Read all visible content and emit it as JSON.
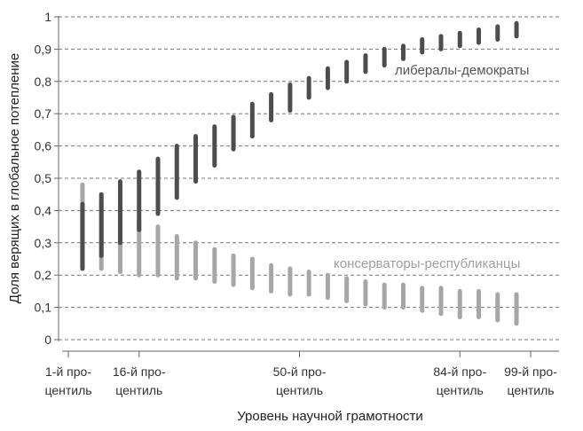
{
  "chart_data": {
    "type": "errorbar",
    "xlabel": "Уровень научной грамотности",
    "ylabel": "Доля верящих в глобальное потепление",
    "ylim": [
      0,
      1
    ],
    "yticks": [
      {
        "value": 0,
        "label": "0"
      },
      {
        "value": 0.1,
        "label": "0,1"
      },
      {
        "value": 0.2,
        "label": "0,2"
      },
      {
        "value": 0.3,
        "label": "0,3"
      },
      {
        "value": 0.4,
        "label": "0,4"
      },
      {
        "value": 0.5,
        "label": "0,5"
      },
      {
        "value": 0.6,
        "label": "0,6"
      },
      {
        "value": 0.7,
        "label": "0,7"
      },
      {
        "value": 0.8,
        "label": "0,8"
      },
      {
        "value": 0.9,
        "label": "0,9"
      },
      {
        "value": 1,
        "label": "1"
      }
    ],
    "xlim": [
      1,
      99
    ],
    "xticks": [
      {
        "value": 1,
        "line1": "1-й про-",
        "line2": "центиль"
      },
      {
        "value": 16,
        "line1": "16-й про-",
        "line2": "центиль"
      },
      {
        "value": 50,
        "line1": "50-й про-",
        "line2": "центиль"
      },
      {
        "value": 84,
        "line1": "84-й про-",
        "line2": "центиль"
      },
      {
        "value": 99,
        "line1": "99-й про-",
        "line2": "центиль"
      }
    ],
    "grid": "horizontal dashed",
    "x": [
      4,
      8,
      12,
      16,
      20,
      24,
      28,
      32,
      36,
      40,
      44,
      48,
      52,
      56,
      60,
      64,
      68,
      72,
      76,
      80,
      84,
      88,
      92,
      96
    ],
    "series": [
      {
        "name": "либералы-демократы",
        "color": "#4d4d4d",
        "low": [
          0.22,
          0.26,
          0.3,
          0.34,
          0.39,
          0.44,
          0.49,
          0.54,
          0.59,
          0.63,
          0.68,
          0.71,
          0.75,
          0.78,
          0.8,
          0.83,
          0.85,
          0.87,
          0.89,
          0.9,
          0.91,
          0.92,
          0.93,
          0.94
        ],
        "high": [
          0.42,
          0.45,
          0.49,
          0.52,
          0.56,
          0.6,
          0.63,
          0.66,
          0.69,
          0.73,
          0.76,
          0.79,
          0.81,
          0.84,
          0.86,
          0.88,
          0.9,
          0.91,
          0.93,
          0.94,
          0.95,
          0.96,
          0.97,
          0.98
        ]
      },
      {
        "name": "консерваторы-республиканцы",
        "color": "#a6a6a6",
        "low": [
          0.22,
          0.22,
          0.21,
          0.2,
          0.2,
          0.19,
          0.19,
          0.18,
          0.17,
          0.16,
          0.15,
          0.14,
          0.14,
          0.13,
          0.12,
          0.11,
          0.1,
          0.1,
          0.09,
          0.08,
          0.07,
          0.07,
          0.06,
          0.05
        ],
        "high": [
          0.48,
          0.43,
          0.4,
          0.37,
          0.35,
          0.32,
          0.3,
          0.28,
          0.26,
          0.25,
          0.23,
          0.22,
          0.21,
          0.2,
          0.19,
          0.18,
          0.17,
          0.17,
          0.16,
          0.16,
          0.15,
          0.15,
          0.14,
          0.14
        ]
      }
    ]
  }
}
